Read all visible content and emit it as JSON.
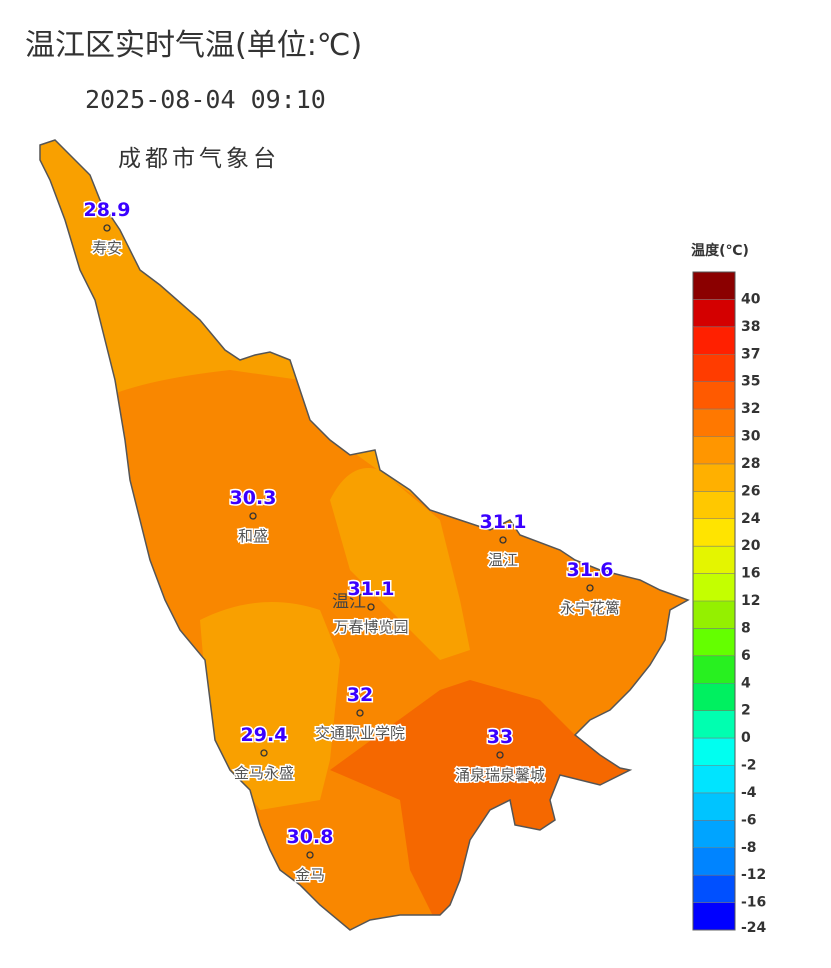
{
  "title": "温江区实时气温(单位:℃)",
  "time": "2025-08-04 09:10",
  "source": "成都市气象台",
  "district_label": "温江",
  "stations": [
    {
      "name": "寿安",
      "value": 28.9
    },
    {
      "name": "和盛",
      "value": 30.3
    },
    {
      "name": "万春博览园",
      "value": 31.1
    },
    {
      "name": "温江",
      "value": 31.1
    },
    {
      "name": "永宁花篱",
      "value": 31.6
    },
    {
      "name": "交通职业学院",
      "value": 32
    },
    {
      "name": "涌泉瑞泉馨城",
      "value": 33
    },
    {
      "name": "金马永盛",
      "value": 29.4
    },
    {
      "name": "金马",
      "value": 30.8
    }
  ],
  "legend": {
    "title": "温度(℃)",
    "ticks": [
      40,
      38,
      37,
      35,
      32,
      30,
      28,
      26,
      24,
      20,
      16,
      12,
      8,
      6,
      4,
      2,
      0,
      -2,
      -4,
      -6,
      -8,
      -12,
      -16,
      -24
    ],
    "colors": [
      "#8b0000",
      "#d40000",
      "#ff2000",
      "#ff3c00",
      "#ff5a00",
      "#ff7800",
      "#ff9600",
      "#ffb000",
      "#ffc800",
      "#ffe400",
      "#e4f500",
      "#c4ff00",
      "#94f000",
      "#64ff00",
      "#28f020",
      "#00f060",
      "#00ffb0",
      "#00fff0",
      "#00e4ff",
      "#00c4ff",
      "#00a4ff",
      "#0084ff",
      "#0050ff",
      "#0000ff"
    ]
  }
}
